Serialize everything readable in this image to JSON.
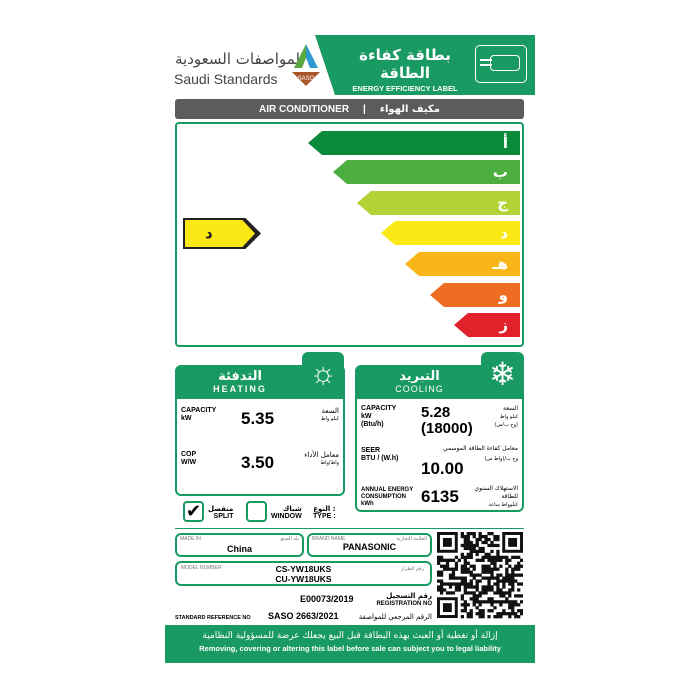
{
  "header": {
    "logo_ar": "المواصفات السعودية",
    "logo_en": "Saudi Standards",
    "saso_badge": "SASO",
    "title_ar": "بطاقة كفاءة الطاقة",
    "title_en": "ENERGY EFFICIENCY LABEL",
    "icon": "air-conditioner-icon"
  },
  "product_bar": {
    "en": "AIR CONDITIONER",
    "sep": "|",
    "ar": "مكيف الهواء"
  },
  "rating": {
    "classes": [
      {
        "label": "أ",
        "color": "#0b8a3c"
      },
      {
        "label": "ب",
        "color": "#4cae3f"
      },
      {
        "label": "ج",
        "color": "#b3d235"
      },
      {
        "label": "د",
        "color": "#fbe816"
      },
      {
        "label": "هـ",
        "color": "#f8b619"
      },
      {
        "label": "و",
        "color": "#ef6d23"
      },
      {
        "label": "ز",
        "color": "#e1222b"
      }
    ],
    "current": "د",
    "current_color": "#fbe816"
  },
  "heating": {
    "title_ar": "التدفئة",
    "title_en": "HEATING",
    "icon": "sun-icon",
    "capacity": {
      "label": "CAPACITY",
      "unit": "kW",
      "label_ar": "السعة",
      "unit_ar": "كيلو واط",
      "value": "5.35"
    },
    "cop": {
      "label": "COP",
      "unit": "W/W",
      "label_ar": "معامل الأداء",
      "unit_ar": "واط/واط",
      "value": "3.50"
    }
  },
  "cooling": {
    "title_ar": "التبريد",
    "title_en": "COOLING",
    "icon": "snowflake-icon",
    "capacity": {
      "label": "CAPACITY",
      "unit": "kW",
      "unit2": "(Btu/h)",
      "label_ar": "السعة",
      "unit_ar": "كيلو واط",
      "unit2_ar": "(وح ب/س)",
      "value": "5.28",
      "value2": "(18000)"
    },
    "seer": {
      "label": "SEER",
      "unit": "BTU / (W.h)",
      "label_ar": "معامل كفاءة الطاقة الموسمي",
      "unit_ar": "وح ب/(واط.س)",
      "value": "10.00"
    },
    "annual": {
      "label": "ANNUAL ENERGY CONSUMPTION",
      "unit": "kWh",
      "label_ar": "الاستهلاك السنوي للطاقة",
      "unit_ar": "كيلوواط ساعة",
      "value": "6135"
    }
  },
  "type": {
    "split_ar": "منفصل",
    "split": "SPLIT",
    "split_checked": true,
    "window_ar": "شباك",
    "window": "WINDOW",
    "window_checked": false,
    "label_ar": "النوع :",
    "label": "TYPE :",
    "check": "✔"
  },
  "info": {
    "made_in_label": "MADE IN",
    "made_in_ar": "بلد الصنع",
    "made_in": "China",
    "brand_label": "BRAND NAME",
    "brand_ar": "العلامة التجارية",
    "brand": "PANASONIC",
    "model_label": "MODEL NUMBER",
    "model_ar": "رقم الطراز",
    "model1": "CS-YW18UKS",
    "model2": "CU-YW18UKS",
    "reg_ar": "رقم التسجيل",
    "reg_label": "REGISTRATION NO",
    "reg": "E00073/2019",
    "std_label": "STANDARD REFERENCE NO",
    "std": "SASO 2663/2021",
    "std_ar": "الرقم المرجعي للمواصفة"
  },
  "footer": {
    "ar": "إزالة أو تغطية أو العبث بهذه البطاقة قبل البيع يجعلك عرضة للمسؤولية النظامية",
    "en": "Removing, covering or altering this label before sale can subject you to legal liability"
  }
}
